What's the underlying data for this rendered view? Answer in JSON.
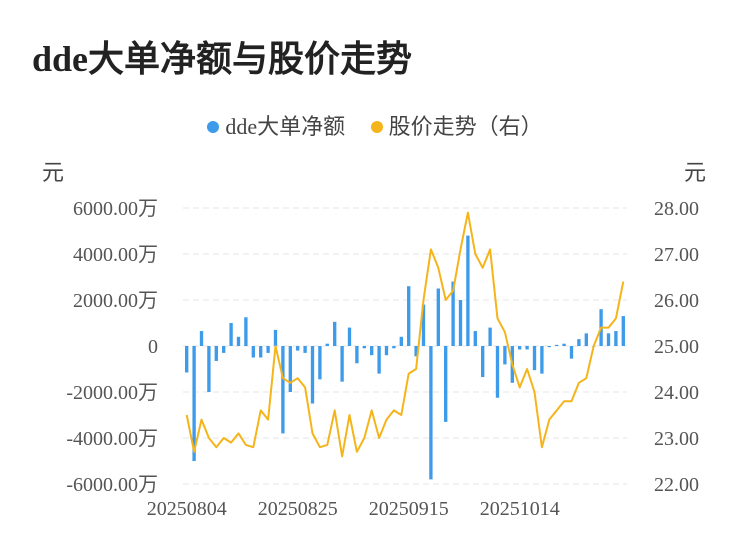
{
  "chart_data": {
    "type": "bar+line",
    "title": "dde大单净额与股价走势",
    "legend": [
      "dde大单净额",
      "股价走势（右）"
    ],
    "left_unit": "元",
    "right_unit": "元",
    "left_ticks": [
      "6000.00万",
      "4000.00万",
      "2000.00万",
      "0",
      "-2000.00万",
      "-4000.00万",
      "-6000.00万"
    ],
    "right_ticks": [
      "28.00",
      "27.00",
      "26.00",
      "25.00",
      "24.00",
      "23.00",
      "22.00"
    ],
    "x_ticks": [
      "20250804",
      "20250825",
      "20250915",
      "20251014"
    ],
    "ylim_left": [
      -6000,
      6000
    ],
    "ylim_right": [
      22,
      28
    ],
    "grid": true,
    "legend_position": "top",
    "colors": {
      "bars": "#3d9be9",
      "line": "#f5b41a"
    },
    "series": [
      {
        "name": "dde大单净额",
        "unit": "万",
        "values": [
          -1150,
          -5000,
          650,
          -2000,
          -650,
          -300,
          1000,
          400,
          1250,
          -500,
          -500,
          -300,
          700,
          -3800,
          -2000,
          -200,
          -300,
          -2500,
          -1450,
          100,
          1050,
          -1550,
          800,
          -750,
          -100,
          -400,
          -1200,
          -400,
          -100,
          400,
          2600,
          -450,
          1800,
          -5800,
          2500,
          -3300,
          2800,
          2000,
          4800,
          650,
          -1350,
          800,
          -2250,
          -800,
          -1600,
          -150,
          -150,
          -1050,
          -1200,
          -50,
          50,
          100,
          -550,
          300,
          550,
          0,
          1600,
          550,
          650,
          1300
        ]
      },
      {
        "name": "股价走势（右）",
        "values": [
          23.5,
          22.7,
          23.4,
          23.0,
          22.8,
          23.0,
          22.9,
          23.1,
          22.85,
          22.8,
          23.6,
          23.4,
          25.0,
          24.3,
          24.2,
          24.3,
          24.1,
          23.1,
          22.8,
          22.85,
          23.6,
          22.6,
          23.5,
          22.7,
          23.0,
          23.6,
          23.0,
          23.4,
          23.6,
          23.5,
          24.4,
          24.5,
          26.0,
          27.1,
          26.7,
          26.0,
          26.2,
          27.1,
          27.9,
          27.0,
          26.7,
          27.1,
          25.6,
          25.3,
          24.6,
          24.1,
          24.5,
          24.0,
          22.8,
          23.4,
          23.6,
          23.8,
          23.8,
          24.2,
          24.3,
          25.0,
          25.4,
          25.4,
          25.6,
          26.4
        ]
      }
    ]
  }
}
